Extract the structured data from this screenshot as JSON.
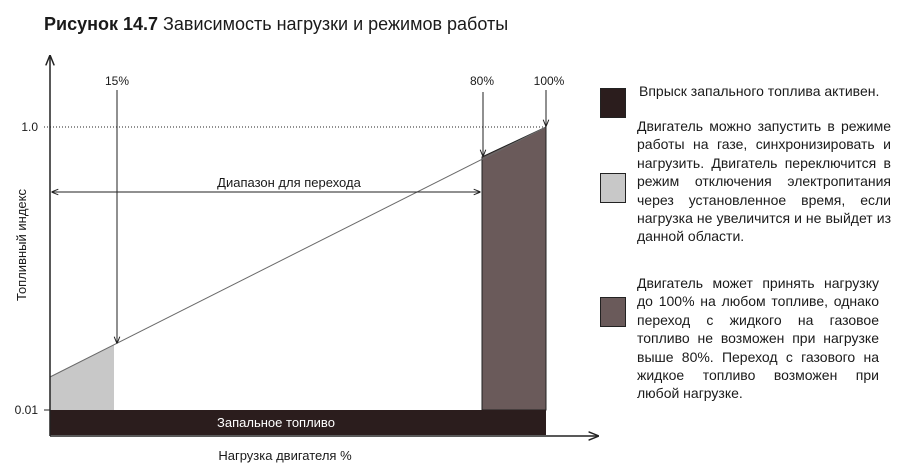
{
  "title": {
    "number": "Рисунок 14.7",
    "text": "Зависимость нагрузки и режимов работы"
  },
  "colors": {
    "pilot": "#2b1d1d",
    "transition": "#6a5a5a",
    "low_load": "#c8c8c8",
    "line": "#444444"
  },
  "chart_data": {
    "type": "diagram",
    "ylabel": "Топливный индекс",
    "xlabel": "Нагрузка двигателя %",
    "y_ticks": [
      "1.0",
      "0.01"
    ],
    "x_markers": [
      "15%",
      "80%",
      "100%"
    ],
    "range_label": "Диапазон для перехода",
    "pilot_label": "Запальное топливо"
  },
  "legend": [
    {
      "color_key": "pilot",
      "text": "Впрыск запального топлива активен."
    },
    {
      "color_key": "low_load",
      "text": "Двигатель можно запустить в режиме работы на газе, синхронизировать и нагрузить. Двигатель переключится в режим отключения электропитания через установленное время, если нагрузка не увеличится и не выйдет из данной области."
    },
    {
      "color_key": "transition",
      "text": "Двигатель может принять нагрузку до 100% на любом топливе, однако переход с жидкого на газовое топливо не возможен при нагрузке выше 80%. Переход с газового на жидкое топливо возможен при любой нагрузке."
    }
  ]
}
